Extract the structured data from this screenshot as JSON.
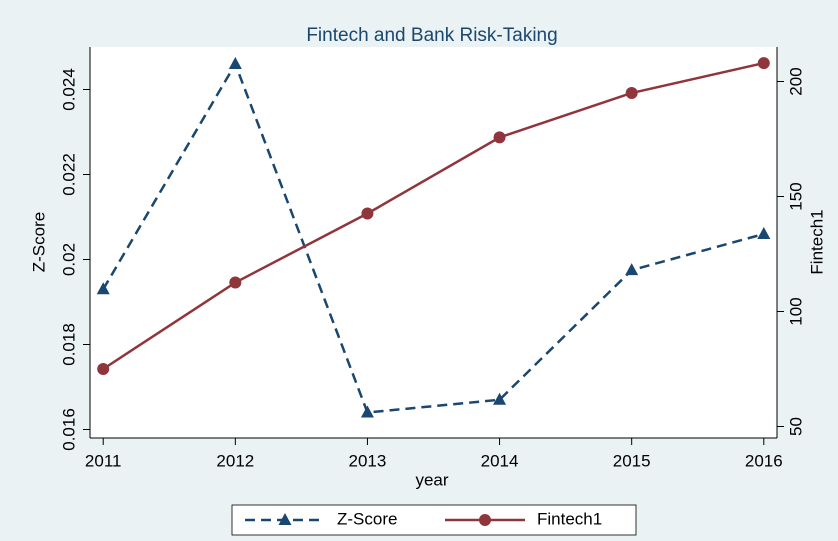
{
  "chart_data": {
    "type": "line",
    "title": "Fintech and Bank Risk-Taking",
    "x_label": "year",
    "y_label": "Z-Score",
    "y2_label": "Fintech1",
    "x": [
      2011,
      2012,
      2013,
      2014,
      2015,
      2016
    ],
    "xlim": [
      2010.9,
      2016.1
    ],
    "xticks": [
      2011,
      2012,
      2013,
      2014,
      2015,
      2016
    ],
    "ylim": [
      0.0158,
      0.025
    ],
    "yticks": [
      0.016,
      0.018,
      0.02,
      0.022,
      0.024
    ],
    "y2lim": [
      45,
      215
    ],
    "y2ticks": [
      50,
      100,
      150,
      200
    ],
    "legend": "bottom",
    "series": [
      {
        "name": "Z-Score",
        "color": "#1a476f",
        "marker": "triangle",
        "dash": true,
        "values": [
          0.0193,
          0.0246,
          0.0164,
          0.0167,
          0.01975,
          0.0206
        ]
      },
      {
        "name": "Fintech1",
        "color": "#90353b",
        "marker": "circle",
        "dash": false,
        "axis": "y2",
        "values": [
          75,
          112.6,
          142.6,
          175.7,
          195,
          208
        ]
      }
    ]
  }
}
